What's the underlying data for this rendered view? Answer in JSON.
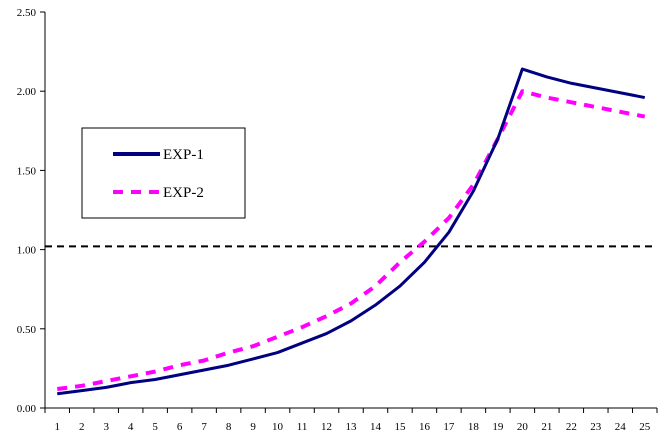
{
  "chart_data": {
    "type": "line",
    "title": "",
    "xlabel": "",
    "ylabel": "",
    "x": [
      1,
      2,
      3,
      4,
      5,
      6,
      7,
      8,
      9,
      10,
      11,
      12,
      13,
      14,
      15,
      16,
      17,
      18,
      19,
      20,
      21,
      22,
      23,
      24,
      25
    ],
    "ylim": [
      0,
      2.5
    ],
    "yticks": [
      "0.00",
      "0.50",
      "1.00",
      "1.50",
      "2.00",
      "2.50"
    ],
    "grid": false,
    "legend_position": "left",
    "reference_line": {
      "y": 1.02,
      "style": "dashed",
      "color": "#000000"
    },
    "series": [
      {
        "name": "EXP-1",
        "color": "#000080",
        "style": "solid",
        "values": [
          0.09,
          0.11,
          0.13,
          0.16,
          0.18,
          0.21,
          0.24,
          0.27,
          0.31,
          0.35,
          0.41,
          0.47,
          0.55,
          0.65,
          0.77,
          0.92,
          1.11,
          1.37,
          1.7,
          2.14,
          2.09,
          2.05,
          2.02,
          1.99,
          1.96
        ]
      },
      {
        "name": "EXP-2",
        "color": "#ff00ff",
        "style": "dashed",
        "values": [
          0.12,
          0.14,
          0.17,
          0.2,
          0.23,
          0.27,
          0.3,
          0.35,
          0.39,
          0.45,
          0.51,
          0.58,
          0.66,
          0.77,
          0.92,
          1.05,
          1.2,
          1.41,
          1.7,
          2.0,
          1.96,
          1.93,
          1.9,
          1.87,
          1.84
        ]
      }
    ]
  }
}
